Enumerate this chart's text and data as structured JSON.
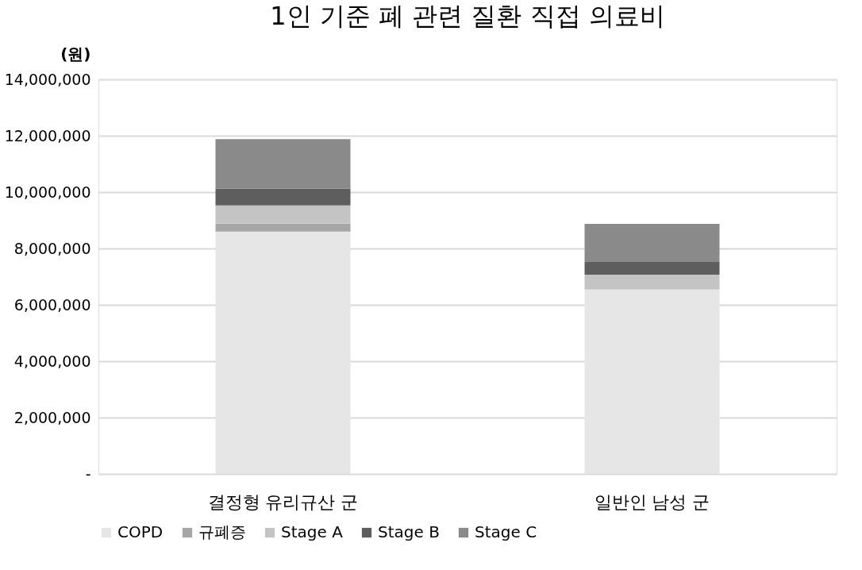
{
  "chart_data": {
    "type": "bar",
    "title": "1인 기준 폐 관련 질환 직접 의료비",
    "ylabel": "(원)",
    "stacked": true,
    "categories": [
      "결정형 유리규산 군",
      "일반인 남성 군"
    ],
    "series": [
      {
        "name": "COPD",
        "color": "#e6e6e6",
        "values": [
          8600000,
          6540000
        ]
      },
      {
        "name": "규폐증",
        "color": "#a6a6a6",
        "values": [
          280000,
          0
        ]
      },
      {
        "name": "Stage A",
        "color": "#c4c4c4",
        "values": [
          650000,
          530000
        ]
      },
      {
        "name": "Stage B",
        "color": "#5e5e5e",
        "values": [
          600000,
          450000
        ]
      },
      {
        "name": "Stage C",
        "color": "#8a8a8a",
        "values": [
          1750000,
          1350000
        ]
      }
    ],
    "ylim": [
      0,
      14000000
    ],
    "yticks": [
      {
        "value": 0,
        "label": "-"
      },
      {
        "value": 2000000,
        "label": "2,000,000"
      },
      {
        "value": 4000000,
        "label": "4,000,000"
      },
      {
        "value": 6000000,
        "label": "6,000,000"
      },
      {
        "value": 8000000,
        "label": "8,000,000"
      },
      {
        "value": 10000000,
        "label": "10,000,000"
      },
      {
        "value": 12000000,
        "label": "12,000,000"
      },
      {
        "value": 14000000,
        "label": "14,000,000"
      }
    ],
    "grid": "y",
    "legend": "bottom"
  }
}
